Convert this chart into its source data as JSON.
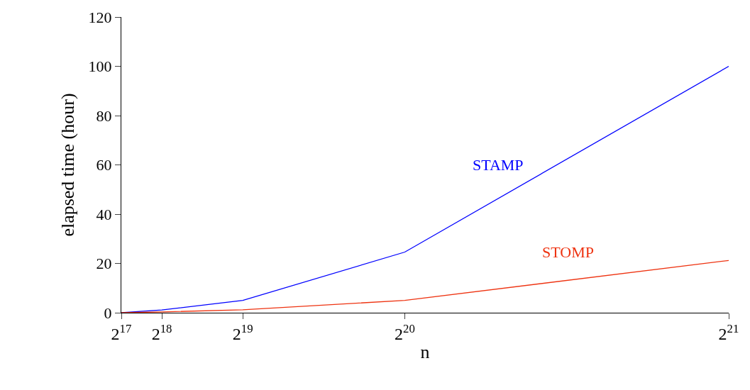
{
  "chart_data": {
    "type": "line",
    "xlabel": "n",
    "ylabel": "elapsed time (hour)",
    "xlim": [
      131072,
      2097152
    ],
    "ylim": [
      0,
      120
    ],
    "xticks": [
      {
        "value": 131072,
        "label": "2$^{17}$"
      },
      {
        "value": 262144,
        "label": "2$^{18}$"
      },
      {
        "value": 524288,
        "label": "2$^{19}$"
      },
      {
        "value": 1048576,
        "label": "2$^{20}$"
      },
      {
        "value": 2097152,
        "label": "2$^{21}$"
      }
    ],
    "yticks": [
      0,
      20,
      40,
      60,
      80,
      100,
      120
    ],
    "x": [
      131072,
      262144,
      524288,
      1048576,
      2097152
    ],
    "series": [
      {
        "name": "STAMP",
        "color": "#0000ff",
        "values": [
          0,
          1.1,
          5,
          24.6,
          100
        ]
      },
      {
        "name": "STOMP",
        "color": "#ee3311",
        "values": [
          0,
          0.3,
          1.2,
          5,
          21.2
        ]
      }
    ],
    "legend": false,
    "marker": "none",
    "line_style": "solid"
  }
}
